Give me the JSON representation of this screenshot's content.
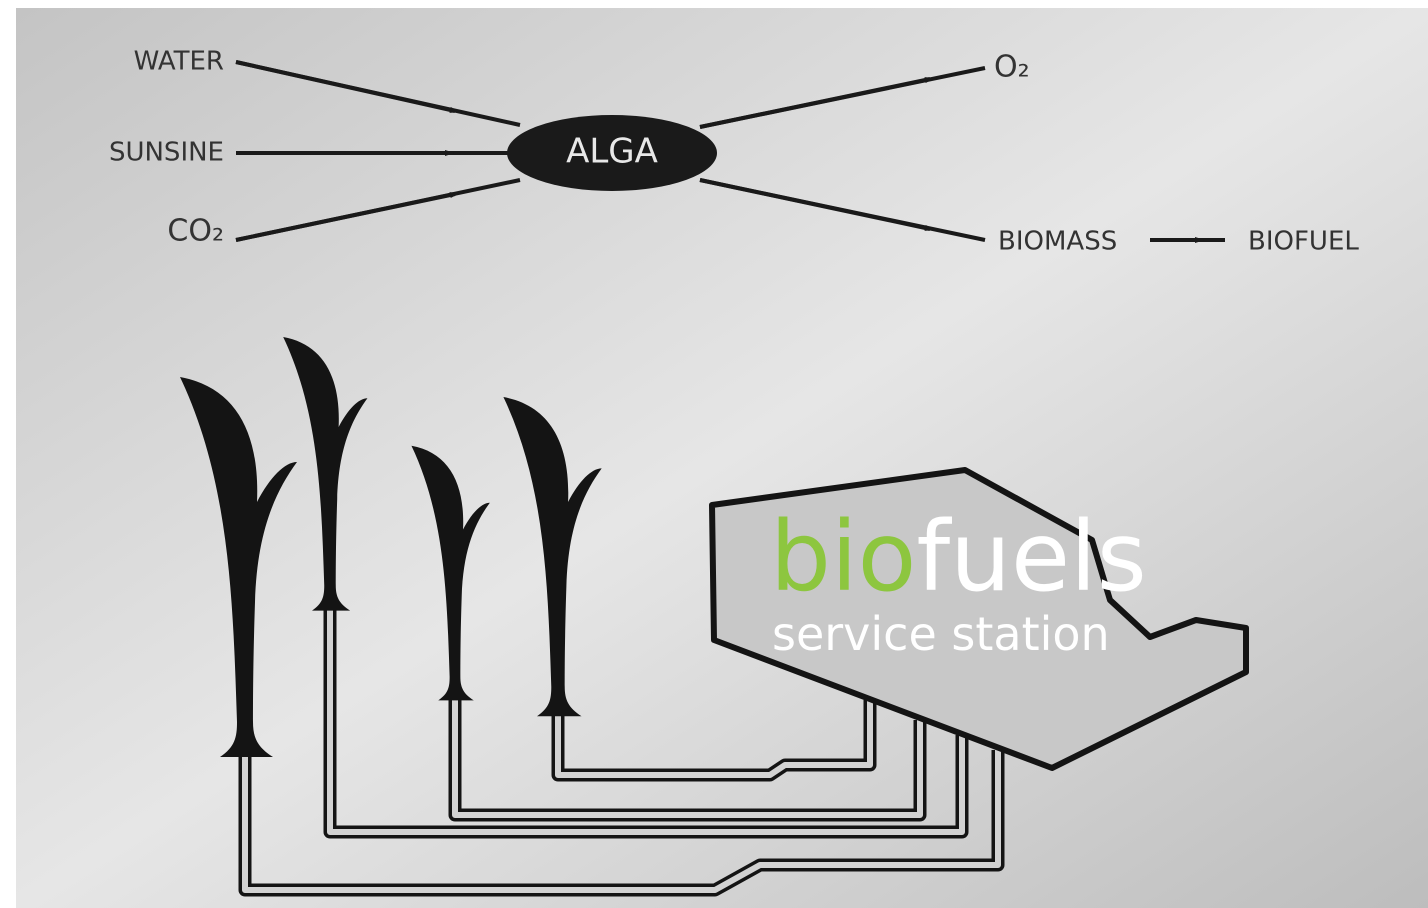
{
  "flow": {
    "inputs": [
      "WATER",
      "SUNSINE",
      "CO₂"
    ],
    "organism": "ALGA",
    "outputs": [
      "O₂",
      "BIOMASS"
    ],
    "product": "BIOFUEL"
  },
  "station": {
    "brand_highlight": "bio",
    "brand_rest": "fuels",
    "subtitle": "service station"
  }
}
